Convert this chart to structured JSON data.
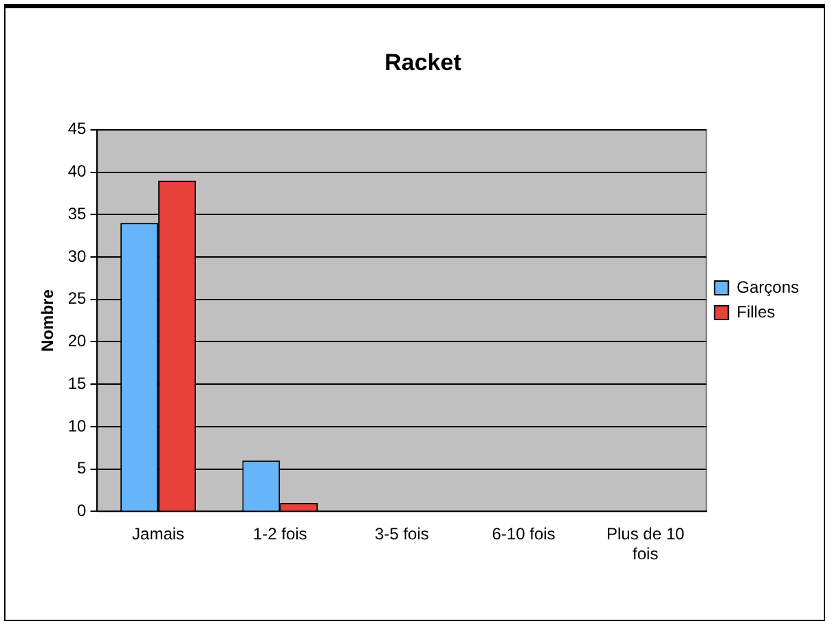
{
  "chart_data": {
    "type": "bar",
    "title": "Racket",
    "ylabel": "Nombre",
    "categories": [
      "Jamais",
      "1-2 fois",
      "3-5 fois",
      "6-10 fois",
      "Plus de 10 fois"
    ],
    "series": [
      {
        "name": "Garçons",
        "color": "#66b4fa",
        "values": [
          34,
          6,
          0,
          0,
          0
        ]
      },
      {
        "name": "Filles",
        "color": "#e8413c",
        "values": [
          39,
          1,
          0,
          0,
          0
        ]
      }
    ],
    "ylim": [
      0,
      45
    ],
    "yticks": [
      0,
      5,
      10,
      15,
      20,
      25,
      30,
      35,
      40,
      45
    ],
    "grid": "y",
    "legend": "right"
  }
}
